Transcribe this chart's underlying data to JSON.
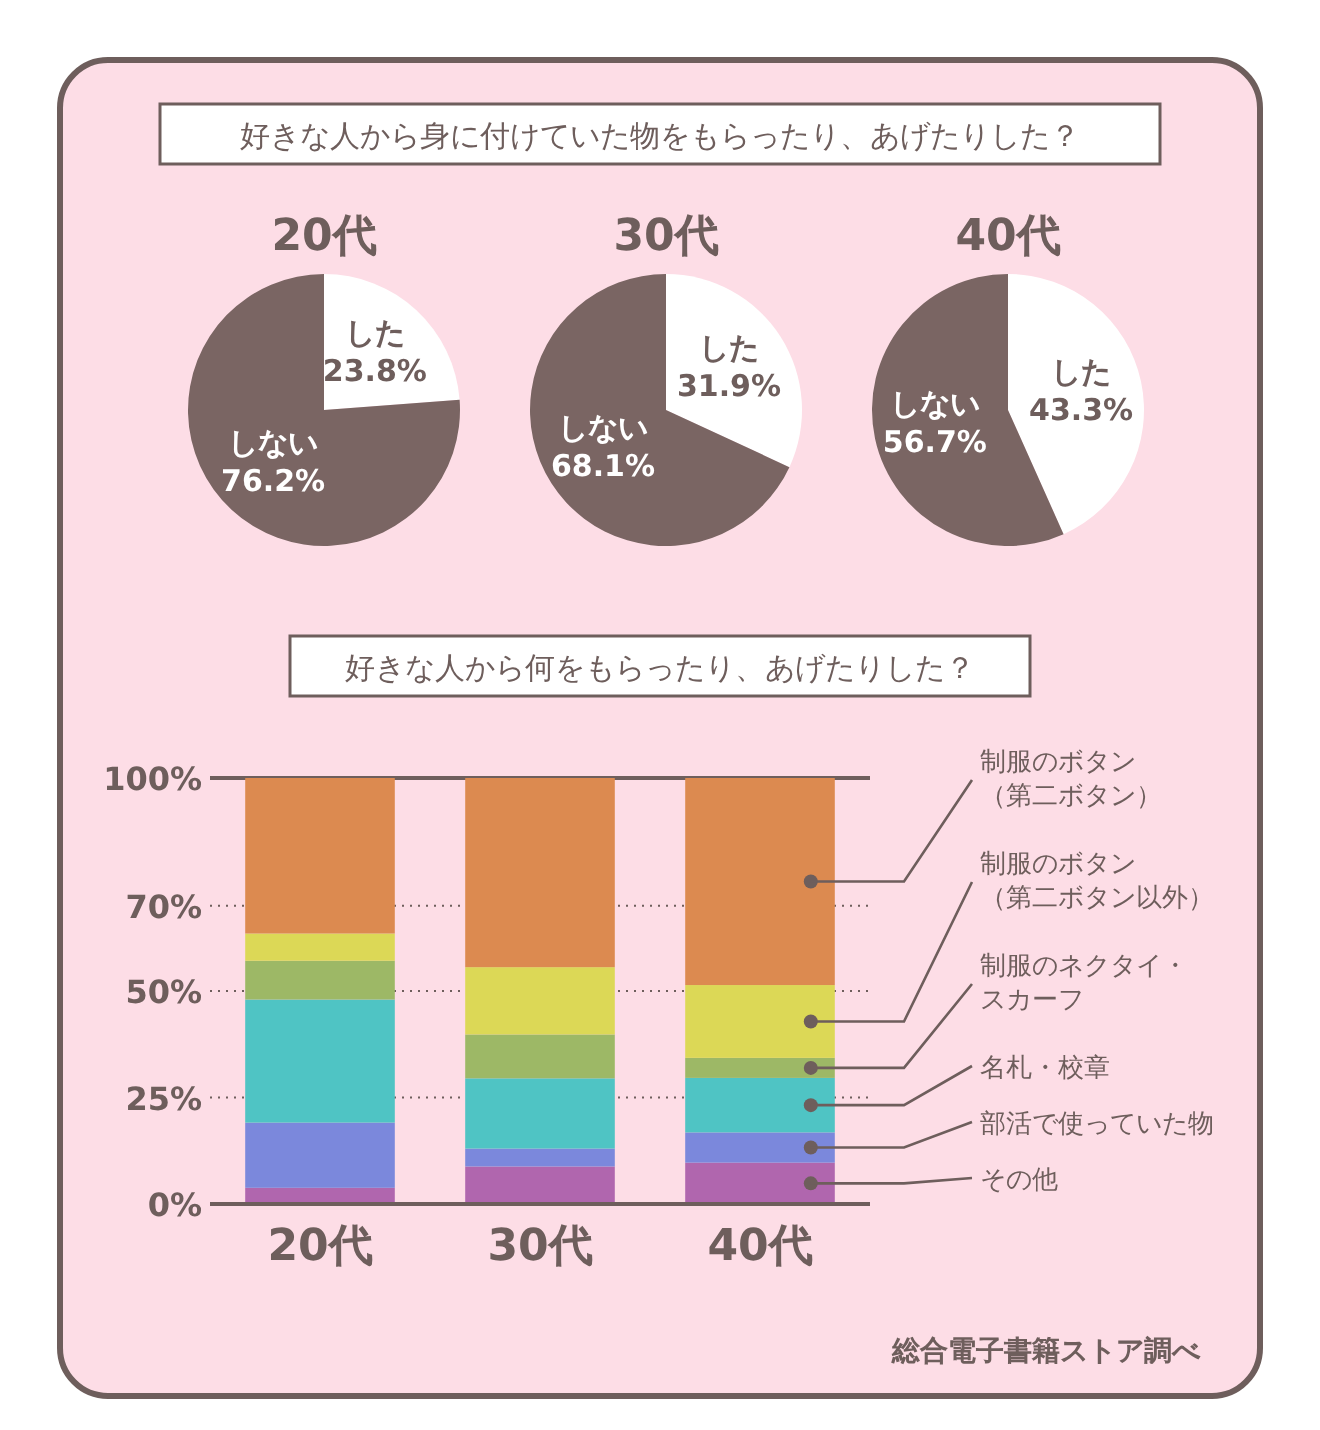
{
  "chart_data": [
    {
      "type": "pie",
      "annotations": [
        "好きな人から身に付けていた物をもらったり、あげたりした？"
      ],
      "title": "20代",
      "categories": [
        "した",
        "しない"
      ],
      "values": [
        23.8,
        76.2
      ],
      "colors": [
        "#ffffff",
        "#7a6563"
      ],
      "value_labels": [
        "23.8%",
        "76.2%"
      ]
    },
    {
      "type": "pie",
      "title": "30代",
      "categories": [
        "した",
        "しない"
      ],
      "values": [
        31.9,
        68.1
      ],
      "colors": [
        "#ffffff",
        "#7a6563"
      ],
      "value_labels": [
        "31.9%",
        "68.1%"
      ]
    },
    {
      "type": "pie",
      "title": "40代",
      "categories": [
        "した",
        "しない"
      ],
      "values": [
        43.3,
        56.7
      ],
      "colors": [
        "#ffffff",
        "#7a6563"
      ],
      "value_labels": [
        "43.3%",
        "56.7%"
      ]
    },
    {
      "type": "bar",
      "title": "好きな人から何をもらったり、あげたりした？",
      "stacked": true,
      "categories": [
        "20代",
        "30代",
        "40代"
      ],
      "series": [
        {
          "name": "その他",
          "color": "#b066ae",
          "values": [
            3.8,
            8.8,
            9.7
          ]
        },
        {
          "name": "部活で使っていた物",
          "color": "#7b88dc",
          "values": [
            15.3,
            4.2,
            7.1
          ]
        },
        {
          "name": "名札・校章",
          "color": "#4fc4c4",
          "values": [
            28.9,
            16.5,
            12.8
          ]
        },
        {
          "name": "制服のネクタイ・スカーフ",
          "color": "#9db866",
          "values": [
            9.1,
            10.3,
            4.7
          ]
        },
        {
          "name": "制服のボタン（第二ボタン以外）",
          "color": "#dcd856",
          "values": [
            6.4,
            15.8,
            17.1
          ]
        },
        {
          "name": "制服のボタン（第二ボタン）",
          "color": "#dc8a50",
          "values": [
            36.5,
            44.4,
            48.6
          ]
        }
      ],
      "ylim": [
        0,
        100
      ],
      "yticks": [
        {
          "value": 0,
          "label": "0%"
        },
        {
          "value": 25,
          "label": "25%"
        },
        {
          "value": 50,
          "label": "50%"
        },
        {
          "value": 70,
          "label": "70%"
        },
        {
          "value": 100,
          "label": "100%"
        }
      ],
      "grid": "y",
      "legend": "right",
      "annotations": [
        "総合電子書籍ストア調べ"
      ]
    }
  ]
}
